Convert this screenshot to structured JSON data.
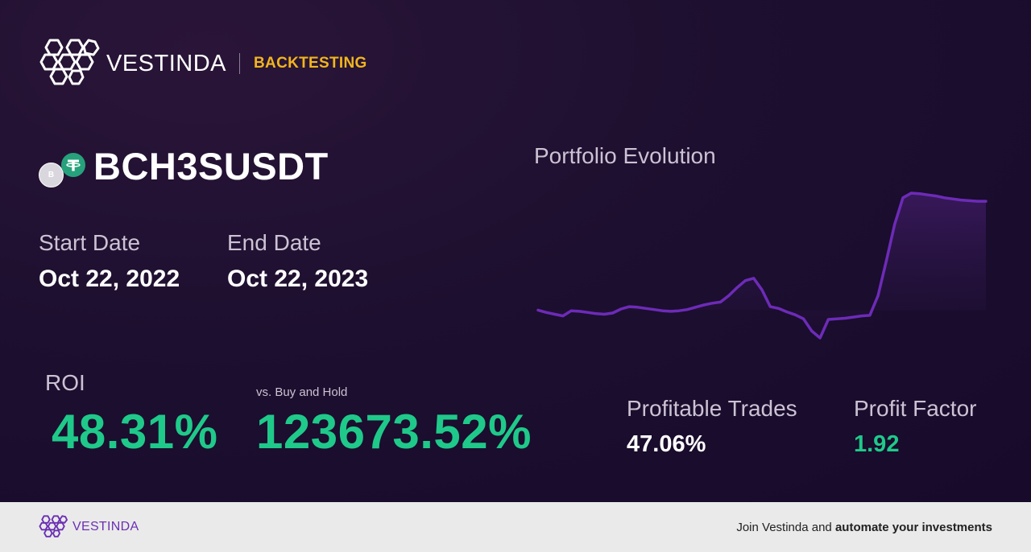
{
  "header": {
    "brand_name": "VESTINDA",
    "section": "BACKTESTING"
  },
  "asset": {
    "symbol": "BCH3SUSDT",
    "base_coin_letter": "B",
    "base_coin_icon": "bch3s-coin-icon",
    "quote_coin_icon": "tether-icon"
  },
  "dates": {
    "start_label": "Start Date",
    "start_value": "Oct 22, 2022",
    "end_label": "End Date",
    "end_value": "Oct 22, 2023"
  },
  "metrics": {
    "roi_label": "ROI",
    "roi_value": "48.31%",
    "buy_hold_label": "vs. Buy and Hold",
    "buy_hold_value": "123673.52%",
    "profitable_trades_label": "Profitable Trades",
    "profitable_trades_value": "47.06%",
    "profit_factor_label": "Profit Factor",
    "profit_factor_value": "1.92"
  },
  "chart": {
    "title": "Portfolio Evolution"
  },
  "chart_data": {
    "type": "area",
    "title": "Portfolio Evolution",
    "xlabel": "",
    "ylabel": "",
    "grid": false,
    "values": [
      100,
      99.6,
      99.3,
      99.0,
      99.9,
      99.8,
      99.6,
      99.4,
      99.3,
      99.5,
      100.2,
      100.6,
      100.5,
      100.3,
      100.1,
      99.9,
      99.8,
      99.9,
      100.1,
      100.5,
      100.9,
      101.2,
      101.4,
      102.5,
      103.9,
      105.1,
      105.5,
      103.5,
      100.6,
      100.3,
      99.7,
      99.2,
      98.5,
      96.4,
      95.2,
      98.4,
      98.5,
      98.6,
      98.8,
      99.0,
      99.1,
      102.5,
      108.5,
      114.8,
      119.4,
      120.2,
      120.1,
      119.9,
      119.7,
      119.4,
      119.2,
      119.0,
      118.9,
      118.8,
      118.8
    ],
    "colors": {
      "line": "#6d2bb8",
      "fill_top": "#3d1a62",
      "fill_bottom": "#22123a"
    }
  },
  "colors": {
    "background": "#1d0f2f",
    "accent_yellow": "#f2b51d",
    "positive_green": "#1fc98a",
    "brand_purple": "#6b2fb3",
    "tether_green": "#26a17b"
  },
  "footer": {
    "brand_name": "VESTINDA",
    "cta_prefix": "Join Vestinda and ",
    "cta_bold": "automate your investments"
  }
}
